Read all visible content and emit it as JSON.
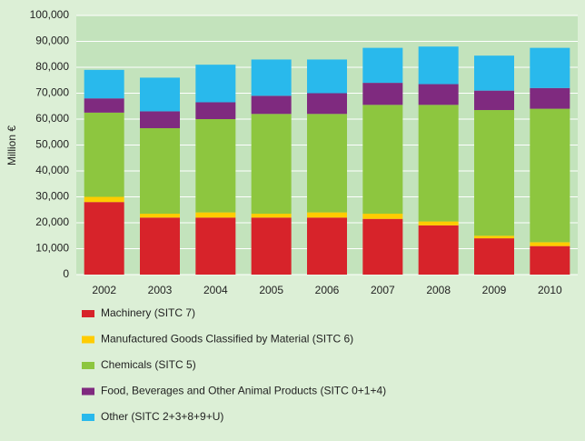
{
  "chart_data": {
    "type": "stacked_bar",
    "y_label": "Million €",
    "categories": [
      "2002",
      "2003",
      "2004",
      "2005",
      "2006",
      "2007",
      "2008",
      "2009",
      "2010"
    ],
    "series": [
      {
        "name": "Machinery (SITC 7)",
        "color": "#d7232a",
        "values": [
          28000,
          22000,
          22000,
          22000,
          22000,
          21500,
          19000,
          14000,
          11000
        ]
      },
      {
        "name": "Manufactured Goods Classified by Material (SITC 6)",
        "color": "#ffcc00",
        "values": [
          2000,
          1500,
          2000,
          1500,
          2000,
          2000,
          1500,
          1000,
          1500
        ]
      },
      {
        "name": "Chemicals (SITC 5)",
        "color": "#8dc63f",
        "values": [
          32500,
          33000,
          36000,
          38500,
          38000,
          42000,
          45000,
          48500,
          51500
        ]
      },
      {
        "name": "Food, Beverages and Other Animal Products (SITC 0+1+4)",
        "color": "#7f2a7f",
        "values": [
          5500,
          6500,
          6500,
          7000,
          8000,
          8500,
          8000,
          7500,
          8000
        ]
      },
      {
        "name": "Other (SITC 2+3+8+9+U)",
        "color": "#29b9ec",
        "values": [
          11000,
          13000,
          14500,
          14000,
          13000,
          13500,
          14500,
          13500,
          15500
        ]
      }
    ],
    "ylim": [
      0,
      100000
    ],
    "yticks": [
      0,
      {
        "value": 10000,
        "label": "10,000"
      },
      {
        "value": 20000,
        "label": "20,000"
      },
      {
        "value": 30000,
        "label": "30,000"
      },
      {
        "value": 40000,
        "label": "40,000"
      },
      {
        "value": 50000,
        "label": "50,000"
      },
      {
        "value": 60000,
        "label": "60,000"
      },
      {
        "value": 70000,
        "label": "70,000"
      },
      {
        "value": 80000,
        "label": "80,000"
      },
      {
        "value": 90000,
        "label": "90,000"
      },
      {
        "value": 100000,
        "label": "100,000"
      }
    ],
    "grid": true
  }
}
